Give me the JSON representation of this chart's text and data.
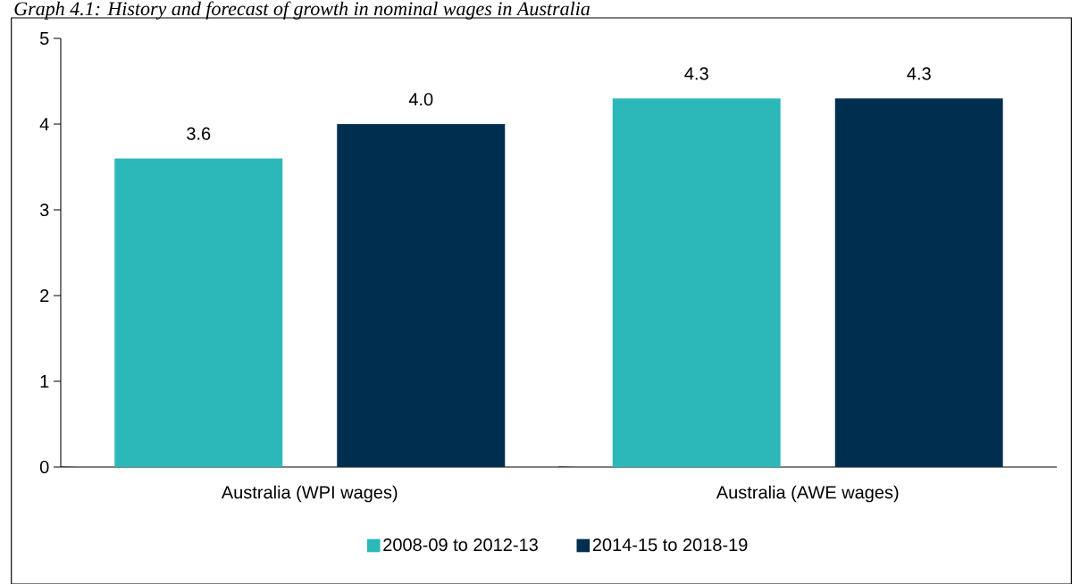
{
  "chart_data": {
    "type": "bar",
    "title": "Graph 4.1: History and forecast of growth in nominal wages in Australia",
    "categories": [
      "Australia (WPI wages)",
      "Australia (AWE wages)"
    ],
    "series": [
      {
        "name": "2008-09 to 2012-13",
        "color": "#2cb8b8",
        "values": [
          3.6,
          4.3
        ],
        "value_labels": [
          "3.6",
          "4.3"
        ]
      },
      {
        "name": "2014-15 to 2018-19",
        "color": "#002e4f",
        "values": [
          4.0,
          4.3
        ],
        "value_labels": [
          "4.0",
          "4.3"
        ]
      }
    ],
    "ylim": [
      0,
      5
    ],
    "yticks": [
      0,
      1,
      2,
      3,
      4,
      5
    ],
    "grid": false,
    "legend": "bottom"
  }
}
